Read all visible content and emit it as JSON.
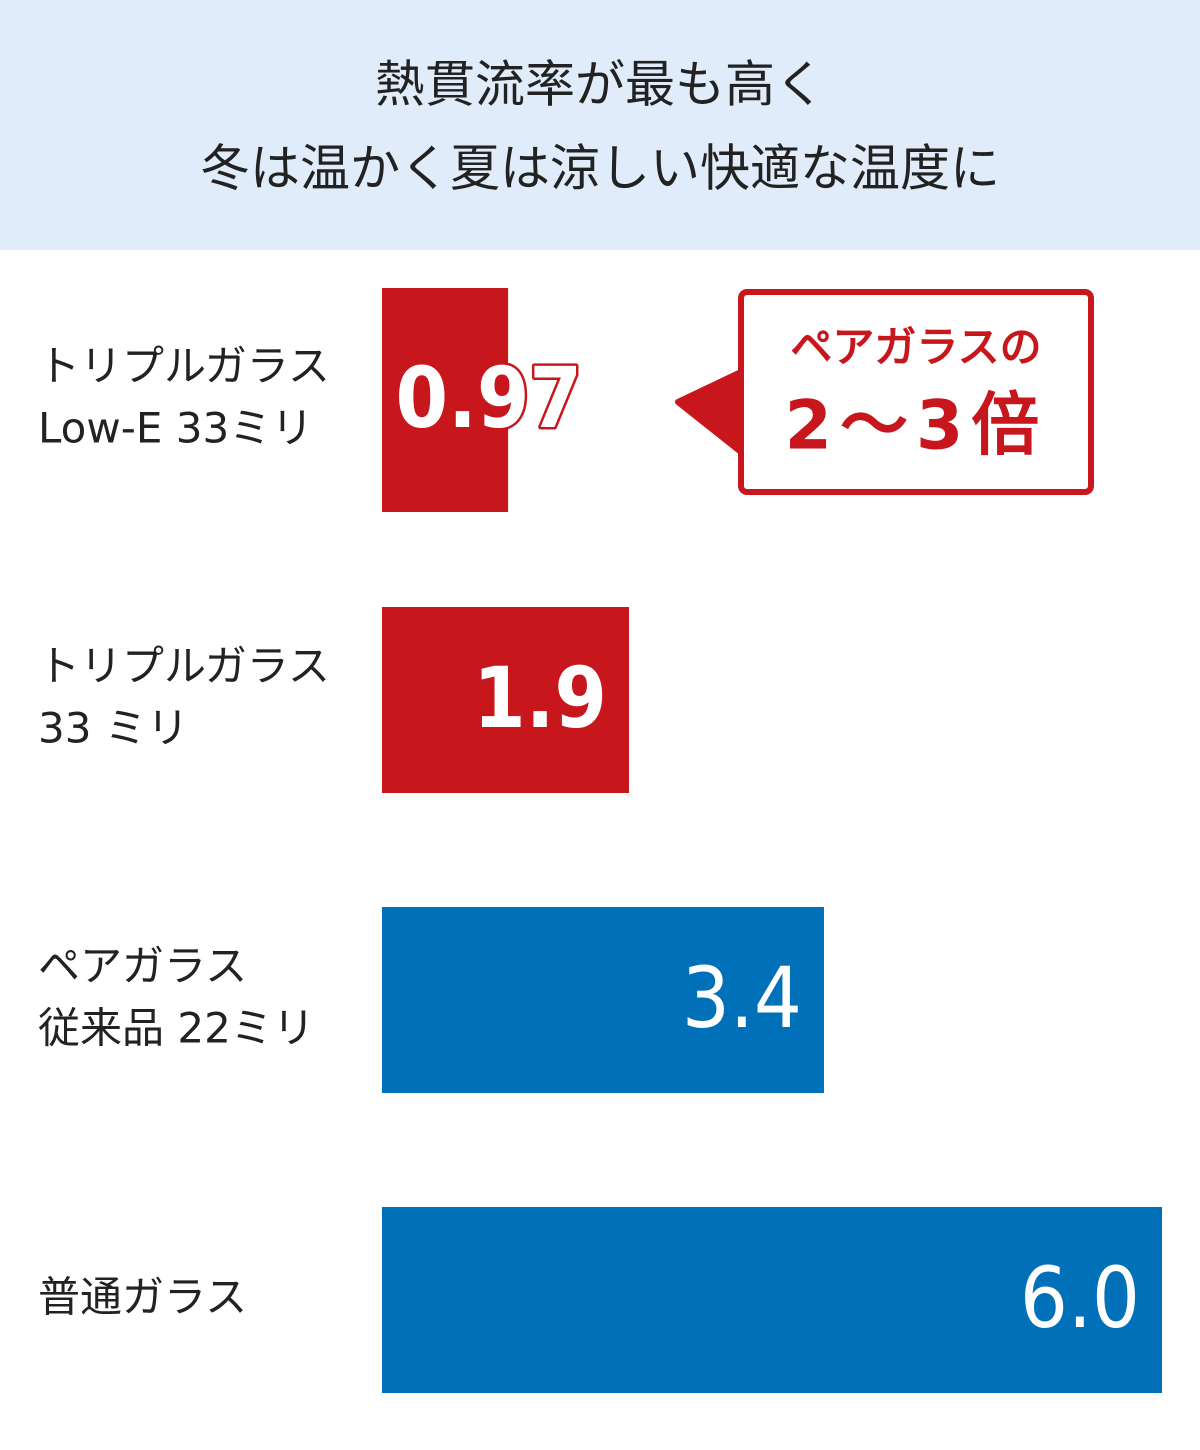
{
  "chart_data": {
    "type": "bar",
    "orientation": "horizontal",
    "title": [
      "熱貫流率が最も高く",
      "冬は温かく夏は涼しい快適な温度に"
    ],
    "categories": [
      [
        "トリプルガラス",
        "Low-E 33ミリ"
      ],
      [
        "トリプルガラス",
        "33 ミリ"
      ],
      [
        "ペアガラス",
        "従来品 22ミリ"
      ],
      [
        "普通ガラス"
      ]
    ],
    "values": [
      0.97,
      1.9,
      3.4,
      6.0
    ],
    "value_labels": [
      "0.97",
      "1.9",
      "3.4",
      "6.0"
    ],
    "colors": [
      "#c8161d",
      "#c8161d",
      "#0070b8",
      "#0070b8"
    ],
    "xlim": [
      0,
      6
    ],
    "annotation": [
      "ペアガラスの",
      "2～3倍"
    ]
  }
}
